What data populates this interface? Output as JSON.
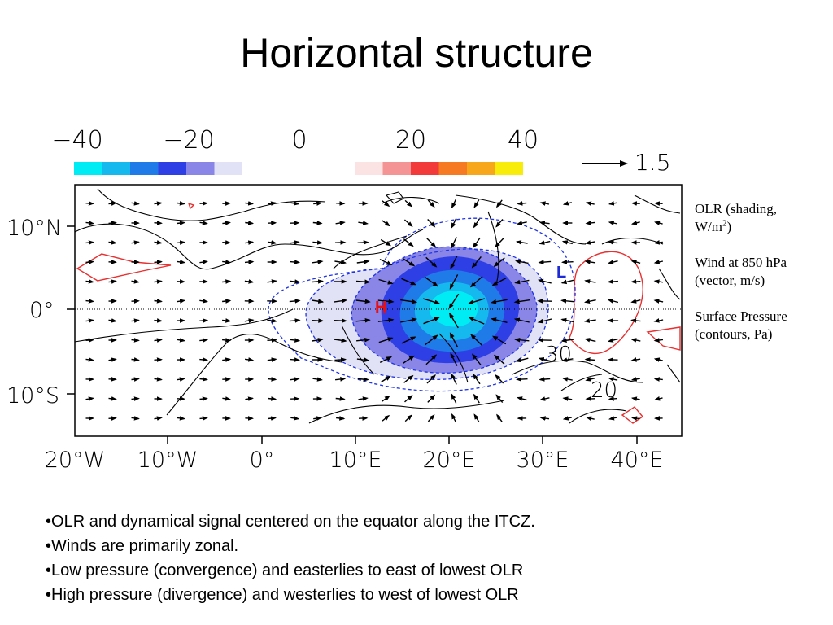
{
  "slide": {
    "title": "Horizontal structure"
  },
  "map": {
    "colorbar": {
      "tick_labels": [
        "−40",
        "−20",
        "0",
        "20",
        "40"
      ],
      "negative_colors": [
        "#00ecf4",
        "#15b9ee",
        "#1f7be8",
        "#2f3fe6",
        "#8a86e8",
        "#e2e2f6"
      ],
      "positive_colors": [
        "#fbe3e3",
        "#f59494",
        "#f23a3a",
        "#f57a22",
        "#f7a81a",
        "#f8ec0b"
      ]
    },
    "vector_reference": {
      "label": "1.5"
    },
    "lat_labels": [
      "10°N",
      "0°",
      "10°S"
    ],
    "lon_labels": [
      "20°W",
      "10°W",
      "0°",
      "10°E",
      "20°E",
      "30°E",
      "40°E"
    ],
    "pressure_markers": {
      "high": "H",
      "low": "L"
    },
    "contour_labels": [
      "30",
      "20"
    ],
    "colors": {
      "high": "#e81010",
      "low": "#1c2bd6",
      "contour_dashed": "#1f33e8",
      "contour_positive": "#e83030"
    }
  },
  "legend": {
    "olr": {
      "line1": "OLR (shading,",
      "line2_prefix": "W/m",
      "line2_sup": "2",
      "line2_suffix": ")"
    },
    "wind": {
      "line1": "Wind at 850 hPa",
      "line2": "(vector, m/s)"
    },
    "pressure": {
      "line1": "Surface Pressure",
      "line2": "(contours, Pa)"
    }
  },
  "bullets": [
    "OLR and dynamical signal centered on the equator along the ITCZ.",
    "Winds are primarily zonal.",
    "Low pressure (convergence) and easterlies to east of lowest OLR",
    "High pressure (divergence) and westerlies to west of lowest OLR"
  ]
}
